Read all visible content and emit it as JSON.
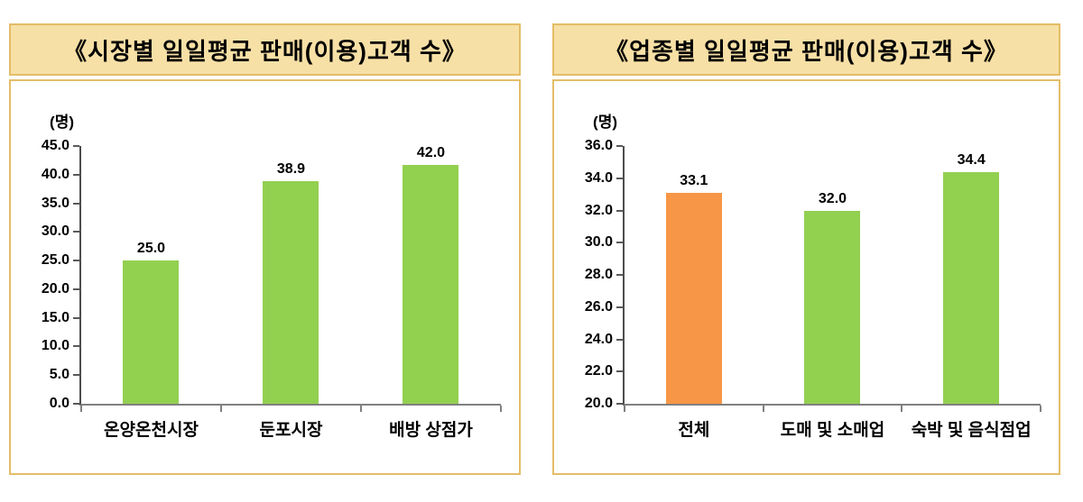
{
  "style": {
    "panel_header_fill": "#F7E0A6",
    "panel_border": "#E3BD68",
    "green_bar": "#92D050",
    "orange_bar": "#F79646",
    "y_axis_color": "#4D4D4D",
    "x_axis_color": "#808080"
  },
  "chart_data": [
    {
      "type": "bar",
      "title": "《시장별  일일평균  판매(이용)고객  수》",
      "unit_label": "(명)",
      "categories": [
        "온양온천시장",
        "둔포시장",
        "배방 상점가"
      ],
      "values": [
        25.0,
        38.9,
        42.0
      ],
      "data_labels": [
        "25.0",
        "38.9",
        "42.0"
      ],
      "bar_colors": [
        "#92D050",
        "#92D050",
        "#92D050"
      ],
      "ylim": [
        0,
        45
      ],
      "yticks": [
        0,
        5,
        10,
        15,
        20,
        25,
        30,
        35,
        40,
        45
      ],
      "ytick_labels": [
        "0.0",
        "5.0",
        "10.0",
        "15.0",
        "20.0",
        "25.0",
        "30.0",
        "35.0",
        "40.0",
        "45.0"
      ],
      "grid": false,
      "legend_position": "none"
    },
    {
      "type": "bar",
      "title": "《업종별  일일평균  판매(이용)고객  수》",
      "unit_label": "(명)",
      "categories": [
        "전체",
        "도매 및 소매업",
        "숙박 및 음식점업"
      ],
      "values": [
        33.1,
        32.0,
        34.4
      ],
      "data_labels": [
        "33.1",
        "32.0",
        "34.4"
      ],
      "bar_colors": [
        "#F79646",
        "#92D050",
        "#92D050"
      ],
      "ylim": [
        20,
        36
      ],
      "yticks": [
        20,
        22,
        24,
        26,
        28,
        30,
        32,
        34,
        36
      ],
      "ytick_labels": [
        "20.0",
        "22.0",
        "24.0",
        "26.0",
        "28.0",
        "30.0",
        "32.0",
        "34.0",
        "36.0"
      ],
      "grid": false,
      "legend_position": "none"
    }
  ]
}
